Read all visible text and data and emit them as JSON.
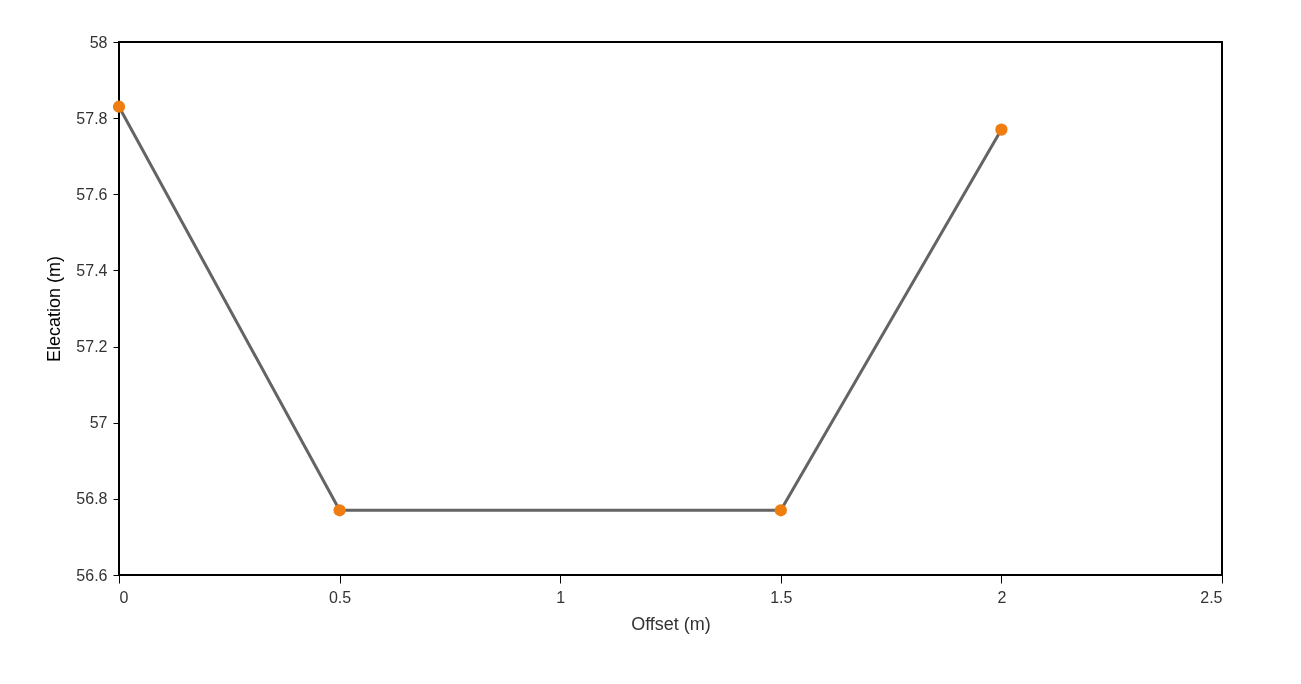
{
  "chart_data": {
    "type": "line",
    "xlabel": "Offset (m)",
    "ylabel": "Elecation (m)",
    "xlim": [
      0,
      2.5
    ],
    "xticks": [
      0,
      0.5,
      1,
      1.5,
      2,
      2.5
    ],
    "ylim": [
      56.6,
      58
    ],
    "yticks": [
      56.6,
      56.8,
      57,
      57.2,
      57.4,
      57.6,
      57.8,
      58
    ],
    "grid": false,
    "series": [
      {
        "color": "#646464",
        "x": [
          0,
          0.5,
          1.5,
          2
        ],
        "values": [
          57.83,
          56.77,
          56.77,
          57.77
        ]
      },
      {
        "type": "scatter",
        "marker": "circle",
        "color": "#ef7d0f",
        "x": [
          0,
          0.5,
          1.5,
          2
        ],
        "values": [
          57.83,
          56.77,
          56.77,
          57.77
        ]
      }
    ]
  }
}
